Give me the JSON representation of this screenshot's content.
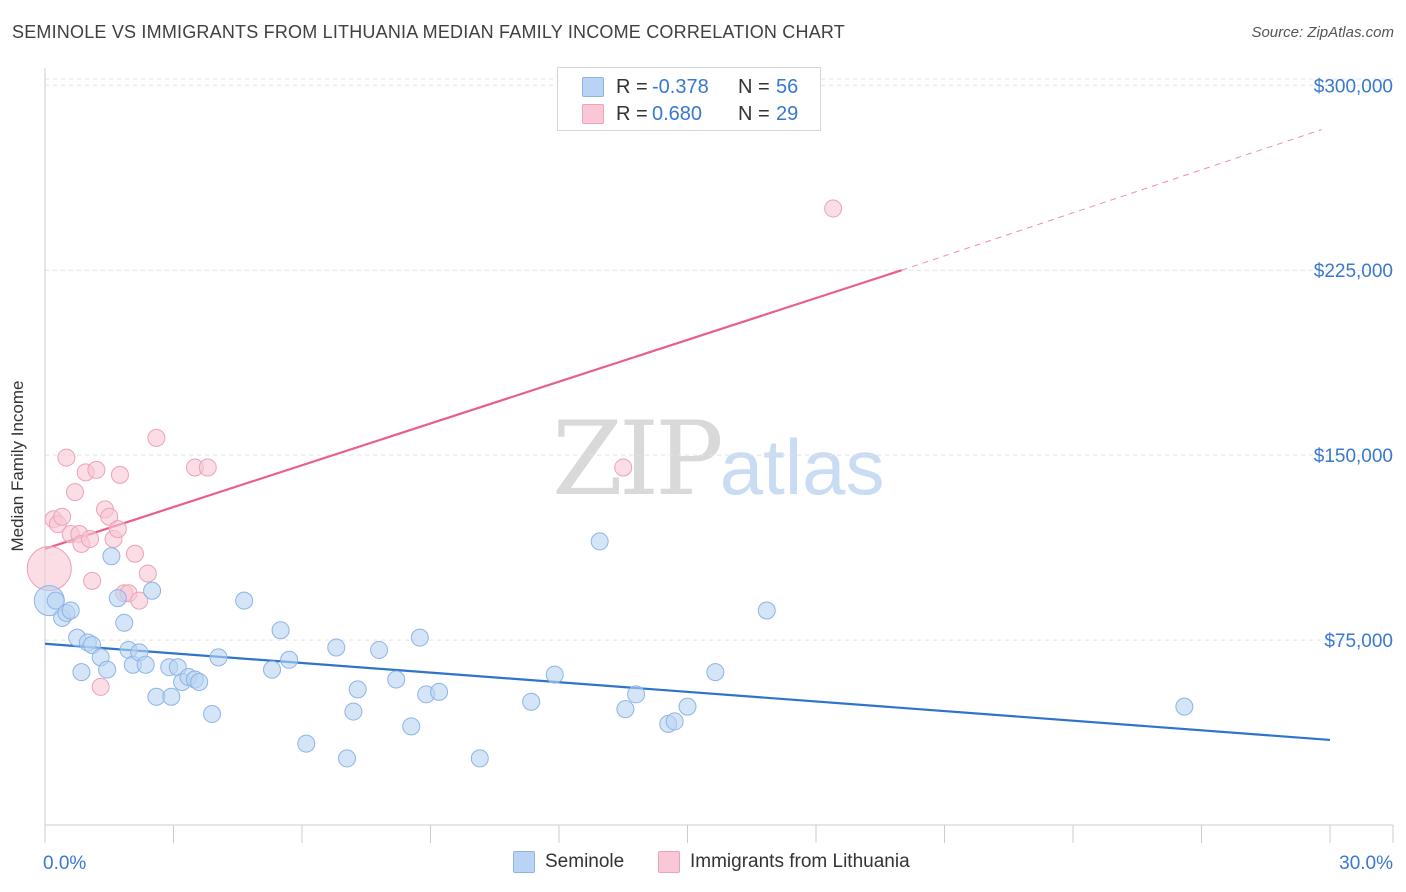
{
  "header": {
    "title": "SEMINOLE VS IMMIGRANTS FROM LITHUANIA MEDIAN FAMILY INCOME CORRELATION CHART",
    "source": "Source: ZipAtlas.com"
  },
  "watermark": {
    "zip": "ZIP",
    "atlas": "atlas"
  },
  "legend_stats": [
    {
      "r_label": "R =",
      "r_value": "-0.378",
      "n_label": "N =",
      "n_value": "56"
    },
    {
      "r_label": "R =",
      "r_value": "0.680",
      "n_label": "N =",
      "n_value": "29"
    }
  ],
  "chart_data": {
    "type": "scatter",
    "title": "SEMINOLE VS IMMIGRANTS FROM LITHUANIA MEDIAN FAMILY INCOME CORRELATION CHART",
    "ylabel": "Median Family Income",
    "xlabel": "",
    "x_tick_labels": [
      "0.0%",
      "30.0%"
    ],
    "y_tick_labels": [
      "$75,000",
      "$150,000",
      "$225,000",
      "$300,000"
    ],
    "y_ticks": [
      75000,
      150000,
      225000,
      300000
    ],
    "xlim": [
      0,
      30
    ],
    "ylim": [
      0,
      307000
    ],
    "grid": true,
    "legend_position": "bottom",
    "colors": {
      "seminole_fill": "#b8d3f3",
      "seminole_stroke": "#8fb4e3",
      "seminole_line": "#2e73cc",
      "lithuania_fill": "#f9c7d6",
      "lithuania_stroke": "#eba3b8",
      "lithuania_line": "#e8608a",
      "tick_text": "#3a78d0"
    },
    "series": [
      {
        "name": "Seminole",
        "trend": {
          "x": [
            0,
            30
          ],
          "y": [
            73500,
            34500
          ]
        },
        "points": [
          [
            0.1,
            91000
          ],
          [
            0.25,
            91000
          ],
          [
            0.4,
            84000
          ],
          [
            0.5,
            86000
          ],
          [
            0.6,
            87000
          ],
          [
            0.75,
            76000
          ],
          [
            0.85,
            62000
          ],
          [
            1.0,
            74000
          ],
          [
            1.1,
            73000
          ],
          [
            1.3,
            68000
          ],
          [
            1.45,
            63000
          ],
          [
            1.55,
            109000
          ],
          [
            1.7,
            92000
          ],
          [
            1.85,
            82000
          ],
          [
            1.95,
            71000
          ],
          [
            2.05,
            65000
          ],
          [
            2.2,
            70000
          ],
          [
            2.35,
            65000
          ],
          [
            2.5,
            95000
          ],
          [
            2.6,
            52000
          ],
          [
            2.9,
            64000
          ],
          [
            2.95,
            52000
          ],
          [
            3.1,
            64000
          ],
          [
            3.2,
            58000
          ],
          [
            3.35,
            60000
          ],
          [
            3.5,
            59000
          ],
          [
            3.6,
            58000
          ],
          [
            3.9,
            45000
          ],
          [
            4.05,
            68000
          ],
          [
            4.65,
            91000
          ],
          [
            5.3,
            63000
          ],
          [
            5.5,
            79000
          ],
          [
            5.7,
            67000
          ],
          [
            6.1,
            33000
          ],
          [
            6.8,
            72000
          ],
          [
            7.05,
            27000
          ],
          [
            7.2,
            46000
          ],
          [
            7.3,
            55000
          ],
          [
            7.8,
            71000
          ],
          [
            8.2,
            59000
          ],
          [
            8.55,
            40000
          ],
          [
            8.75,
            76000
          ],
          [
            8.9,
            53000
          ],
          [
            9.2,
            54000
          ],
          [
            10.15,
            27000
          ],
          [
            11.35,
            50000
          ],
          [
            11.9,
            61000
          ],
          [
            12.95,
            115000
          ],
          [
            13.55,
            47000
          ],
          [
            13.8,
            53000
          ],
          [
            14.55,
            41000
          ],
          [
            14.7,
            42000
          ],
          [
            15.0,
            48000
          ],
          [
            15.65,
            62000
          ],
          [
            16.85,
            87000
          ],
          [
            26.6,
            48000
          ]
        ]
      },
      {
        "name": "Immigrants from Lithuania",
        "trend": {
          "x": [
            0,
            20
          ],
          "y": [
            112000,
            225000
          ]
        },
        "trend_dashed": {
          "x": [
            20,
            29.8
          ],
          "y": [
            225000,
            282000
          ]
        },
        "points": [
          [
            0.1,
            104000
          ],
          [
            0.2,
            124000
          ],
          [
            0.3,
            122000
          ],
          [
            0.4,
            125000
          ],
          [
            0.5,
            149000
          ],
          [
            0.6,
            118000
          ],
          [
            0.7,
            135000
          ],
          [
            0.8,
            118000
          ],
          [
            0.85,
            114000
          ],
          [
            0.95,
            143000
          ],
          [
            1.05,
            116000
          ],
          [
            1.1,
            99000
          ],
          [
            1.2,
            144000
          ],
          [
            1.3,
            56000
          ],
          [
            1.4,
            128000
          ],
          [
            1.5,
            125000
          ],
          [
            1.6,
            116000
          ],
          [
            1.7,
            120000
          ],
          [
            1.75,
            142000
          ],
          [
            1.85,
            94000
          ],
          [
            1.95,
            94000
          ],
          [
            2.1,
            110000
          ],
          [
            2.2,
            91000
          ],
          [
            2.4,
            102000
          ],
          [
            2.6,
            157000
          ],
          [
            3.5,
            145000
          ],
          [
            3.8,
            145000
          ],
          [
            13.5,
            145000
          ],
          [
            18.4,
            250000
          ]
        ]
      }
    ]
  }
}
